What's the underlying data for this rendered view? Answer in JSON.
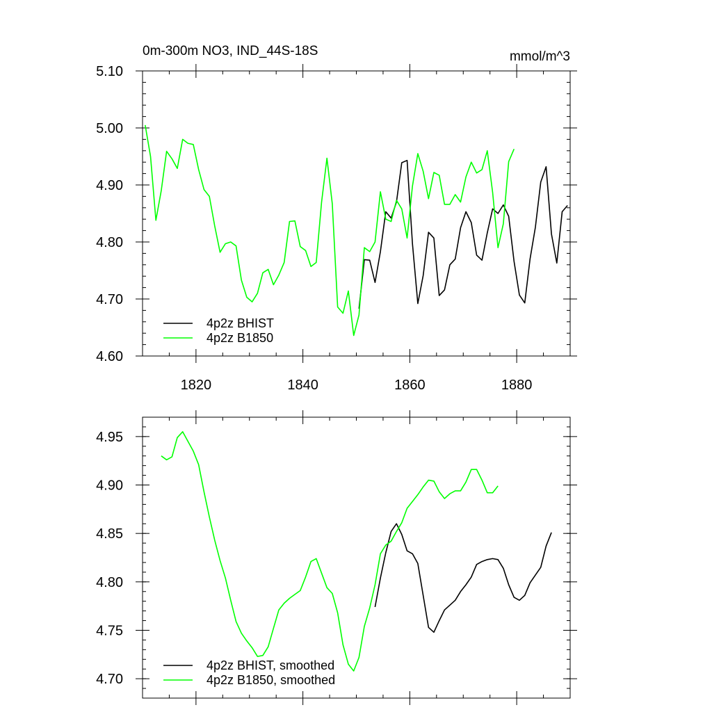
{
  "chart_data": [
    {
      "type": "line",
      "title": "0m-300m NO3, IND_44S-18S",
      "units": "mmol/m^3",
      "xlim": [
        1810,
        1890
      ],
      "ylim": [
        4.6,
        5.1
      ],
      "xticks": [
        {
          "value": 1820,
          "label": "1820"
        },
        {
          "value": 1840,
          "label": "1840"
        },
        {
          "value": 1860,
          "label": "1860"
        },
        {
          "value": 1880,
          "label": "1880"
        }
      ],
      "yticks": [
        {
          "value": 4.6,
          "label": "4.60"
        },
        {
          "value": 4.7,
          "label": "4.70"
        },
        {
          "value": 4.8,
          "label": "4.80"
        },
        {
          "value": 4.9,
          "label": "4.90"
        },
        {
          "value": 5.0,
          "label": "5.00"
        },
        {
          "value": 5.1,
          "label": "5.10"
        }
      ],
      "legend_position": "bottom-left",
      "series": [
        {
          "name": "4p2z BHIST",
          "color": "#000000",
          "x": [
            1850.5,
            1851.5,
            1852.5,
            1853.5,
            1854.5,
            1855.5,
            1856.5,
            1857.5,
            1858.5,
            1859.5,
            1860.5,
            1861.5,
            1862.5,
            1863.5,
            1864.5,
            1865.5,
            1866.5,
            1867.5,
            1868.5,
            1869.5,
            1870.5,
            1871.5,
            1872.5,
            1873.5,
            1874.5,
            1875.5,
            1876.5,
            1877.5,
            1878.5,
            1879.5,
            1880.5,
            1881.5,
            1882.5,
            1883.5,
            1884.5,
            1885.5,
            1886.5,
            1887.5,
            1888.5,
            1889.5
          ],
          "y": [
            4.683,
            4.769,
            4.768,
            4.729,
            4.783,
            4.853,
            4.842,
            4.87,
            4.939,
            4.943,
            4.797,
            4.692,
            4.741,
            4.817,
            4.807,
            4.706,
            4.716,
            4.76,
            4.77,
            4.825,
            4.853,
            4.834,
            4.777,
            4.768,
            4.816,
            4.858,
            4.85,
            4.865,
            4.845,
            4.766,
            4.707,
            4.693,
            4.77,
            4.826,
            4.905,
            4.932,
            4.814,
            4.763,
            4.853,
            4.864
          ]
        },
        {
          "name": "4p2z B1850",
          "color": "#00ff00",
          "x": [
            1810.5,
            1811.5,
            1812.5,
            1813.5,
            1814.5,
            1815.5,
            1816.5,
            1817.5,
            1818.5,
            1819.5,
            1820.5,
            1821.5,
            1822.5,
            1823.5,
            1824.5,
            1825.5,
            1826.5,
            1827.5,
            1828.5,
            1829.5,
            1830.5,
            1831.5,
            1832.5,
            1833.5,
            1834.5,
            1835.5,
            1836.5,
            1837.5,
            1838.5,
            1839.5,
            1840.5,
            1841.5,
            1842.5,
            1843.5,
            1844.5,
            1845.5,
            1846.5,
            1847.5,
            1848.5,
            1849.5,
            1850.5,
            1851.5,
            1852.5,
            1853.5,
            1854.5,
            1855.5,
            1856.5,
            1857.5,
            1858.5,
            1859.5,
            1860.5,
            1861.5,
            1862.5,
            1863.5,
            1864.5,
            1865.5,
            1866.5,
            1867.5,
            1868.5,
            1869.5,
            1870.5,
            1871.5,
            1872.5,
            1873.5,
            1874.5,
            1875.5,
            1876.5,
            1877.5,
            1878.5,
            1879.5
          ],
          "y": [
            5.005,
            4.95,
            4.838,
            4.89,
            4.959,
            4.946,
            4.929,
            4.98,
            4.973,
            4.971,
            4.927,
            4.892,
            4.88,
            4.828,
            4.782,
            4.797,
            4.8,
            4.793,
            4.733,
            4.703,
            4.695,
            4.71,
            4.746,
            4.752,
            4.725,
            4.742,
            4.764,
            4.836,
            4.837,
            4.792,
            4.785,
            4.757,
            4.764,
            4.87,
            4.947,
            4.867,
            4.686,
            4.675,
            4.714,
            4.636,
            4.672,
            4.79,
            4.783,
            4.8,
            4.888,
            4.84,
            4.836,
            4.873,
            4.858,
            4.807,
            4.898,
            4.955,
            4.924,
            4.876,
            4.922,
            4.917,
            4.866,
            4.866,
            4.883,
            4.87,
            4.914,
            4.94,
            4.921,
            4.927,
            4.96,
            4.887,
            4.79,
            4.832,
            4.941,
            4.963
          ]
        }
      ]
    },
    {
      "type": "line",
      "xlim": [
        1810,
        1890
      ],
      "ylim": [
        4.68,
        4.97
      ],
      "xticks": [
        {
          "value": 1820,
          "label": ""
        },
        {
          "value": 1840,
          "label": ""
        },
        {
          "value": 1860,
          "label": ""
        },
        {
          "value": 1880,
          "label": ""
        }
      ],
      "yticks": [
        {
          "value": 4.7,
          "label": "4.70"
        },
        {
          "value": 4.75,
          "label": "4.75"
        },
        {
          "value": 4.8,
          "label": "4.80"
        },
        {
          "value": 4.85,
          "label": "4.85"
        },
        {
          "value": 4.9,
          "label": "4.90"
        },
        {
          "value": 4.95,
          "label": "4.95"
        }
      ],
      "legend_position": "bottom-left",
      "series": [
        {
          "name": "4p2z BHIST, smoothed",
          "color": "#000000",
          "x": [
            1853.5,
            1854.5,
            1855.5,
            1856.5,
            1857.5,
            1858.5,
            1859.5,
            1860.5,
            1861.5,
            1862.5,
            1863.5,
            1864.5,
            1865.5,
            1866.5,
            1867.5,
            1868.5,
            1869.5,
            1870.5,
            1871.5,
            1872.5,
            1873.5,
            1874.5,
            1875.5,
            1876.5,
            1877.5,
            1878.5,
            1879.5,
            1880.5,
            1881.5,
            1882.5,
            1883.5,
            1884.5,
            1885.5,
            1886.5
          ],
          "y": [
            4.774,
            4.804,
            4.83,
            4.852,
            4.86,
            4.849,
            4.832,
            4.829,
            4.819,
            4.786,
            4.753,
            4.748,
            4.76,
            4.771,
            4.776,
            4.781,
            4.79,
            4.797,
            4.805,
            4.818,
            4.821,
            4.823,
            4.824,
            4.823,
            4.814,
            4.797,
            4.784,
            4.781,
            4.786,
            4.799,
            4.807,
            4.815,
            4.837,
            4.851
          ]
        },
        {
          "name": "4p2z B1850, smoothed",
          "color": "#00ff00",
          "x": [
            1813.5,
            1814.5,
            1815.5,
            1816.5,
            1817.5,
            1818.5,
            1819.5,
            1820.5,
            1821.5,
            1822.5,
            1823.5,
            1824.5,
            1825.5,
            1826.5,
            1827.5,
            1828.5,
            1829.5,
            1830.5,
            1831.5,
            1832.5,
            1833.5,
            1834.5,
            1835.5,
            1836.5,
            1837.5,
            1838.5,
            1839.5,
            1840.5,
            1841.5,
            1842.5,
            1843.5,
            1844.5,
            1845.5,
            1846.5,
            1847.5,
            1848.5,
            1849.5,
            1850.5,
            1851.5,
            1852.5,
            1853.5,
            1854.5,
            1855.5,
            1856.5,
            1857.5,
            1858.5,
            1859.5,
            1860.5,
            1861.5,
            1862.5,
            1863.5,
            1864.5,
            1865.5,
            1866.5,
            1867.5,
            1868.5,
            1869.5,
            1870.5,
            1871.5,
            1872.5,
            1873.5,
            1874.5,
            1875.5,
            1876.5
          ],
          "y": [
            4.93,
            4.926,
            4.929,
            4.949,
            4.955,
            4.945,
            4.935,
            4.921,
            4.893,
            4.867,
            4.843,
            4.822,
            4.804,
            4.781,
            4.759,
            4.747,
            4.739,
            4.732,
            4.723,
            4.724,
            4.733,
            4.752,
            4.771,
            4.778,
            4.783,
            4.787,
            4.791,
            4.805,
            4.821,
            4.824,
            4.809,
            4.794,
            4.788,
            4.768,
            4.735,
            4.715,
            4.708,
            4.722,
            4.754,
            4.773,
            4.797,
            4.829,
            4.838,
            4.842,
            4.852,
            4.861,
            4.876,
            4.883,
            4.89,
            4.898,
            4.905,
            4.904,
            4.893,
            4.886,
            4.891,
            4.894,
            4.894,
            4.903,
            4.916,
            4.916,
            4.905,
            4.892,
            4.892,
            4.899
          ]
        }
      ]
    }
  ]
}
